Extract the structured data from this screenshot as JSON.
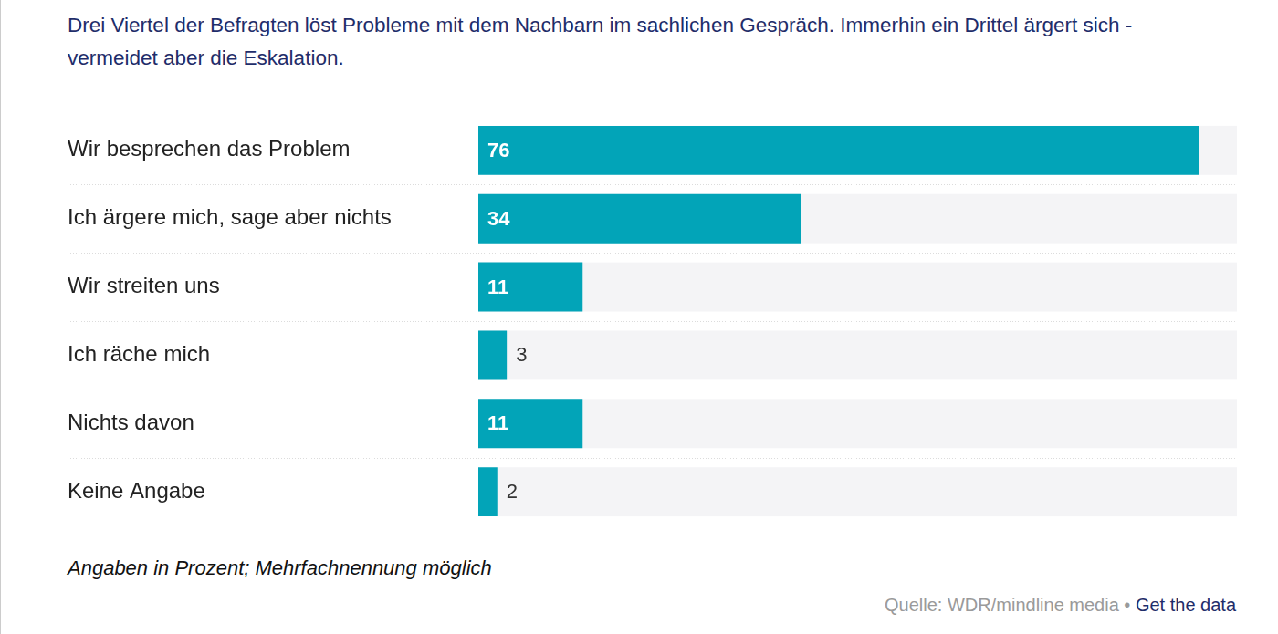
{
  "chart_data": {
    "type": "bar",
    "title": "Drei Viertel der Befragten löst Probleme mit dem Nachbarn im sachlichen Gespräch. Immerhin ein Drittel ärgert sich - vermeidet aber die Eskalation.",
    "categories": [
      "Wir besprechen das Problem",
      "Ich ärgere mich, sage aber nichts",
      "Wir streiten uns",
      "Ich räche mich",
      "Nichts davon",
      "Keine Angabe"
    ],
    "values": [
      76,
      34,
      11,
      3,
      11,
      2
    ],
    "color": "#02a4b8",
    "orientation": "horizontal",
    "xlim": [
      0,
      80
    ],
    "grid": false,
    "tick_labels": "y",
    "data_labels": true,
    "annotations": [
      "Angaben in Prozent; Mehrfachnennung möglich",
      "Quelle: WDR/mindline media •",
      "Get the data"
    ]
  }
}
